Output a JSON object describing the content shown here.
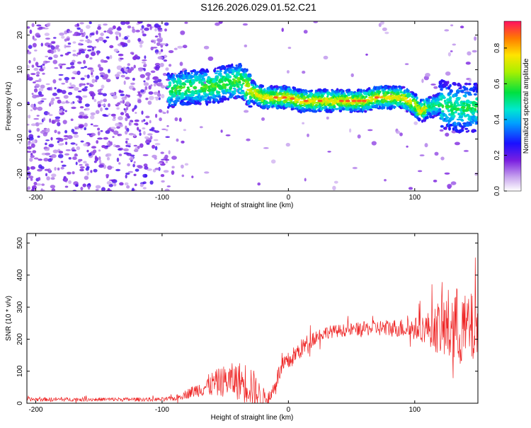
{
  "title": "S126.2026.029.01.52.C21",
  "chart_data": [
    {
      "type": "heatmap",
      "name": "spectrogram",
      "xlabel": "Height of straight line (km)",
      "ylabel": "Frequency (Hz)",
      "xlim": [
        -207,
        150
      ],
      "ylim": [
        -25,
        24
      ],
      "x_ticks": [
        -200,
        -100,
        0,
        100
      ],
      "y_ticks": [
        20,
        10,
        0,
        -10,
        -20
      ],
      "signal_track": {
        "x": [
          -95,
          -80,
          -65,
          -50,
          -38,
          -30,
          -20,
          -10,
          0,
          10,
          20,
          30,
          40,
          50,
          60,
          70,
          80,
          90,
          100,
          105,
          110,
          120,
          130,
          140,
          150
        ],
        "freq": [
          4,
          5,
          5,
          6,
          7,
          4,
          2,
          2,
          2,
          1,
          1,
          1,
          1,
          1,
          1,
          2,
          2,
          2,
          0,
          -2,
          -1,
          0,
          -1,
          -1,
          -1
        ]
      },
      "colorbar": {
        "label": "Normalized spectral amplitude",
        "min": 0.0,
        "max": 0.95,
        "ticks": [
          0.0,
          0.2,
          0.4,
          0.6,
          0.8
        ]
      }
    },
    {
      "type": "line",
      "name": "snr",
      "xlabel": "Height of straight line (km)",
      "ylabel": "SNR (10 * v/v)",
      "xlim": [
        -207,
        150
      ],
      "ylim": [
        0,
        530
      ],
      "x_ticks": [
        -200,
        -100,
        0,
        100
      ],
      "y_ticks": [
        500,
        400,
        300,
        200,
        100,
        0
      ],
      "color": "#ee2222",
      "series_envelope": {
        "x": [
          -207,
          -150,
          -100,
          -90,
          -80,
          -70,
          -60,
          -50,
          -40,
          -30,
          -25,
          -20,
          -15,
          -10,
          -5,
          0,
          10,
          20,
          30,
          50,
          70,
          90,
          100,
          110,
          120,
          130,
          140,
          150
        ],
        "mean": [
          12,
          12,
          12,
          15,
          30,
          45,
          60,
          70,
          70,
          60,
          30,
          20,
          10,
          70,
          110,
          130,
          170,
          205,
          222,
          230,
          235,
          235,
          232,
          235,
          235,
          240,
          230,
          230
        ],
        "spread": [
          6,
          6,
          6,
          8,
          15,
          25,
          40,
          50,
          60,
          70,
          50,
          30,
          15,
          30,
          30,
          30,
          30,
          25,
          20,
          20,
          25,
          30,
          35,
          50,
          90,
          140,
          110,
          120
        ]
      }
    }
  ]
}
